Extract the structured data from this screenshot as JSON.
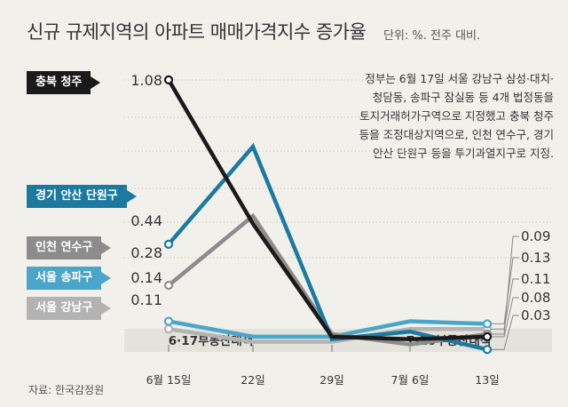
{
  "header": {
    "title": "신규 규제지역의 아파트 매매가격지수 증가율",
    "unit": "단위: %. 전주 대비."
  },
  "source": "자료: 한국감정원",
  "annotation": [
    "정부는 6월 17일 서울 강남구 삼성·대치·",
    "청담동, 송파구 잠실동 등 4개 법정동을",
    "토지거래허가구역으로 지정했고 충북 청주",
    "등을 조정대상지역으로, 인천 연수구, 경기",
    "안산 단원구 등을 투기과열지구로 지정."
  ],
  "chart_data": {
    "type": "line",
    "title": "신규 규제지역의 아파트 매매가격지수 증가율",
    "ylabel": "단위: %. 전주 대비.",
    "x": [
      "6월 15일",
      "22일",
      "29일",
      "7월 6일",
      "13일"
    ],
    "ylim": [
      0,
      1.2
    ],
    "grid": "dotted horizontal",
    "events": [
      {
        "label": "6·17부동산대책",
        "between": [
          "6월 15일",
          "22일"
        ]
      },
      {
        "label": "7·10부동산대책",
        "between": [
          "7월 6일",
          "13일"
        ]
      }
    ],
    "series": [
      {
        "name": "충북 청주",
        "color": "#1a1a1a",
        "values": [
          1.08,
          0.52,
          0.08,
          0.07,
          0.08
        ],
        "start_label": "1.08",
        "end_label": "0.08"
      },
      {
        "name": "경기 안산 단원구",
        "color": "#1c7aa1",
        "values": [
          0.44,
          0.82,
          0.07,
          0.1,
          0.03
        ],
        "start_label": "0.44",
        "end_label": "0.03"
      },
      {
        "name": "인천 연수구",
        "color": "#8c8c8c",
        "values": [
          0.28,
          0.55,
          0.09,
          0.05,
          0.09
        ],
        "start_label": "0.28",
        "end_label": "0.09"
      },
      {
        "name": "서울 송파구",
        "color": "#4aa5ca",
        "values": [
          0.14,
          0.08,
          0.08,
          0.14,
          0.13
        ],
        "start_label": "0.14",
        "end_label": "0.13"
      },
      {
        "name": "서울 강남구",
        "color": "#b3b3b3",
        "values": [
          0.11,
          0.06,
          0.06,
          0.11,
          0.11
        ],
        "start_label": "0.11",
        "end_label": "0.11"
      }
    ]
  }
}
